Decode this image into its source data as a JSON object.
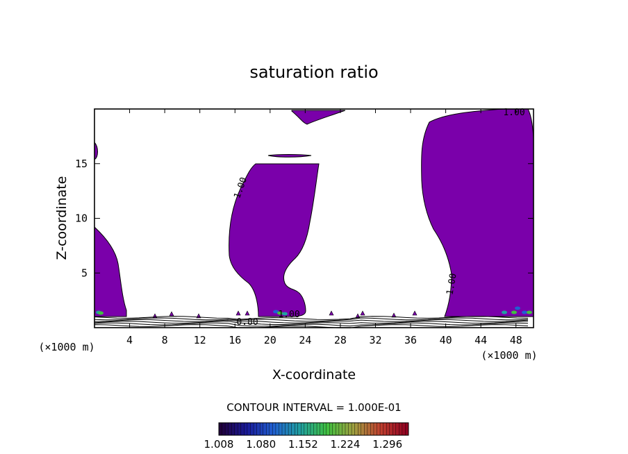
{
  "chart_data": {
    "type": "contour",
    "title": "saturation ratio",
    "xlabel": "X-coordinate",
    "ylabel": "Z-coordinate",
    "x_unit": "(×1000 m)",
    "x_unit_right": "(×1000 m)",
    "xlim": [
      0,
      50
    ],
    "ylim": [
      0,
      20
    ],
    "x_ticks": [
      4,
      8,
      12,
      16,
      20,
      24,
      28,
      32,
      36,
      40,
      44,
      48
    ],
    "y_ticks": [
      5,
      10,
      15
    ],
    "contour_labels": [
      "1.00",
      "1.00",
      "1.00",
      "0.80",
      "1.00"
    ],
    "fill_color": "#7a00aa",
    "contour_interval_text": "CONTOUR INTERVAL = 1.000E-01",
    "colorbar": {
      "labels": [
        "1.008",
        "1.080",
        "1.152",
        "1.224",
        "1.296"
      ],
      "min": 1.008,
      "max": 1.332,
      "colors": [
        "#20003a",
        "#1a1a9a",
        "#2060d0",
        "#20a0a0",
        "#40c040",
        "#a0a040",
        "#c04030",
        "#900020"
      ]
    }
  }
}
